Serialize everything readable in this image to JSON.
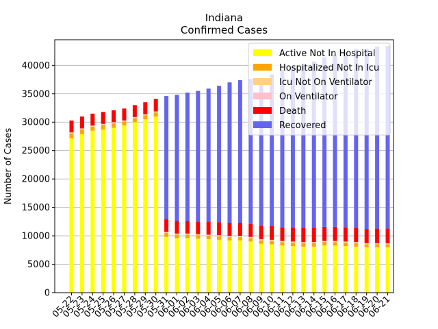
{
  "chart_data": {
    "type": "bar",
    "stacked": true,
    "title": "Indiana",
    "subtitle": "Confirmed Cases",
    "xlabel": "",
    "ylabel": "Number of Cases",
    "ylim": [
      0,
      44500
    ],
    "yticks": [
      0,
      5000,
      10000,
      15000,
      20000,
      25000,
      30000,
      35000,
      40000
    ],
    "grid": "y",
    "legend_position": "top-right",
    "categories": [
      "05-22",
      "05-23",
      "05-24",
      "05-25",
      "05-26",
      "05-27",
      "05-28",
      "05-29",
      "05-30",
      "05-31",
      "06-01",
      "06-02",
      "06-03",
      "06-04",
      "06-05",
      "06-06",
      "06-07",
      "06-08",
      "06-09",
      "06-10",
      "06-11",
      "06-12",
      "06-13",
      "06-14",
      "06-15",
      "06-16",
      "06-17",
      "06-18",
      "06-19",
      "06-20",
      "06-21"
    ],
    "series": [
      {
        "name": "Active Not In Hospital",
        "color": "#ffff00",
        "values": [
          27200,
          27900,
          28500,
          28700,
          29000,
          29400,
          30000,
          30500,
          31000,
          9800,
          9600,
          9600,
          9500,
          9400,
          9300,
          9200,
          9200,
          9000,
          8600,
          8500,
          8300,
          8200,
          8100,
          8100,
          8300,
          8300,
          8200,
          8100,
          8000,
          8000,
          8000
        ]
      },
      {
        "name": "Hospitalized Not In Icu",
        "color": "#ffa500",
        "values": [
          800,
          800,
          700,
          800,
          800,
          700,
          700,
          700,
          700,
          700,
          600,
          600,
          600,
          600,
          600,
          600,
          600,
          600,
          600,
          600,
          600,
          600,
          600,
          600,
          600,
          600,
          600,
          600,
          500,
          500,
          500
        ]
      },
      {
        "name": "Icu Not On Ventilator",
        "color": "#ffd27f",
        "values": [
          100,
          100,
          100,
          100,
          100,
          100,
          100,
          100,
          100,
          100,
          100,
          100,
          100,
          100,
          100,
          100,
          100,
          100,
          100,
          100,
          100,
          100,
          100,
          100,
          100,
          100,
          100,
          100,
          100,
          100,
          100
        ]
      },
      {
        "name": "On Ventilator",
        "color": "#ffc0cb",
        "values": [
          100,
          100,
          100,
          100,
          100,
          100,
          100,
          100,
          100,
          100,
          100,
          100,
          100,
          100,
          100,
          100,
          100,
          100,
          100,
          100,
          100,
          100,
          100,
          100,
          100,
          100,
          100,
          100,
          100,
          100,
          100
        ]
      },
      {
        "name": "Death",
        "color": "#ff0000",
        "values": [
          2100,
          2100,
          2100,
          2100,
          2100,
          2100,
          2100,
          2100,
          2200,
          2200,
          2200,
          2200,
          2200,
          2300,
          2300,
          2300,
          2300,
          2300,
          2400,
          2400,
          2400,
          2400,
          2500,
          2500,
          2500,
          2500,
          2500,
          2500,
          2500,
          2600,
          2600
        ]
      },
      {
        "name": "Recovered",
        "color": "#6464ee",
        "values": [
          0,
          0,
          0,
          0,
          0,
          0,
          0,
          0,
          0,
          21700,
          22200,
          22600,
          23000,
          23400,
          24000,
          24700,
          25100,
          25500,
          25900,
          26700,
          27700,
          28300,
          28700,
          29300,
          29800,
          30200,
          30900,
          31500,
          31700,
          32000,
          32100
        ]
      }
    ]
  }
}
